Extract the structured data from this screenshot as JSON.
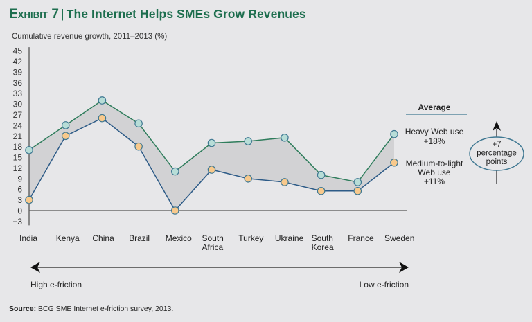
{
  "header": {
    "exhibit_label": "Exhibit 7",
    "separator": "|",
    "title": "The Internet Helps SMEs Grow Revenues"
  },
  "source": {
    "label": "Source:",
    "text": "BCG SME Internet e-friction survey, 2013."
  },
  "colors": {
    "background": "#e7e7e9",
    "title": "#1d6e4e",
    "heavy_line": "#2f7d5c",
    "heavy_marker_fill": "#b7ddd7",
    "medium_line": "#2d5b87",
    "medium_marker_fill": "#f8c98c",
    "marker_stroke": "#3f7892",
    "band_fill": "#d2d2d4",
    "axis": "#555555"
  },
  "chart_data": {
    "type": "line",
    "title": "The Internet Helps SMEs Grow Revenues",
    "ylabel": "Cumulative revenue growth, 2011–2013 (%)",
    "xlabel": "",
    "ylim": [
      -3,
      45
    ],
    "yticks": [
      "45",
      "42",
      "39",
      "36",
      "33",
      "30",
      "27",
      "24",
      "21",
      "18",
      "15",
      "12",
      "9",
      "6",
      "3",
      "0",
      "−3"
    ],
    "ytick_values": [
      45,
      42,
      39,
      36,
      33,
      30,
      27,
      24,
      21,
      18,
      15,
      12,
      9,
      6,
      3,
      0,
      -3
    ],
    "grid": false,
    "categories": [
      [
        "India"
      ],
      [
        "Kenya"
      ],
      [
        "China"
      ],
      [
        "Brazil"
      ],
      [
        "Mexico"
      ],
      [
        "South",
        "Africa"
      ],
      [
        "Turkey"
      ],
      [
        "Ukraine"
      ],
      [
        "South",
        "Korea"
      ],
      [
        "France"
      ],
      [
        "Sweden"
      ]
    ],
    "category_names": [
      "India",
      "Kenya",
      "China",
      "Brazil",
      "Mexico",
      "South Africa",
      "Turkey",
      "Ukraine",
      "South Korea",
      "France",
      "Sweden"
    ],
    "series": [
      {
        "name": "Heavy Web use",
        "values": [
          17,
          24,
          31,
          24.5,
          11,
          19,
          19.5,
          20.5,
          10,
          8,
          21.5
        ]
      },
      {
        "name": "Medium-to-light Web use",
        "values": [
          3,
          21,
          26,
          18,
          0,
          11.5,
          9,
          8,
          5.5,
          5.5,
          13.5
        ]
      }
    ],
    "shaded_band_between_series": true,
    "legend": {
      "placement": "right",
      "heading": "Average",
      "entries": [
        {
          "lines": [
            "Heavy Web use",
            "+18%"
          ]
        },
        {
          "lines": [
            "Medium-to-light",
            "Web use",
            "+11%"
          ]
        }
      ]
    },
    "annotations": {
      "gap_callout": [
        "+7",
        "percentage",
        "points"
      ],
      "friction_axis": {
        "left": "High e-friction",
        "right": "Low e-friction"
      }
    }
  }
}
